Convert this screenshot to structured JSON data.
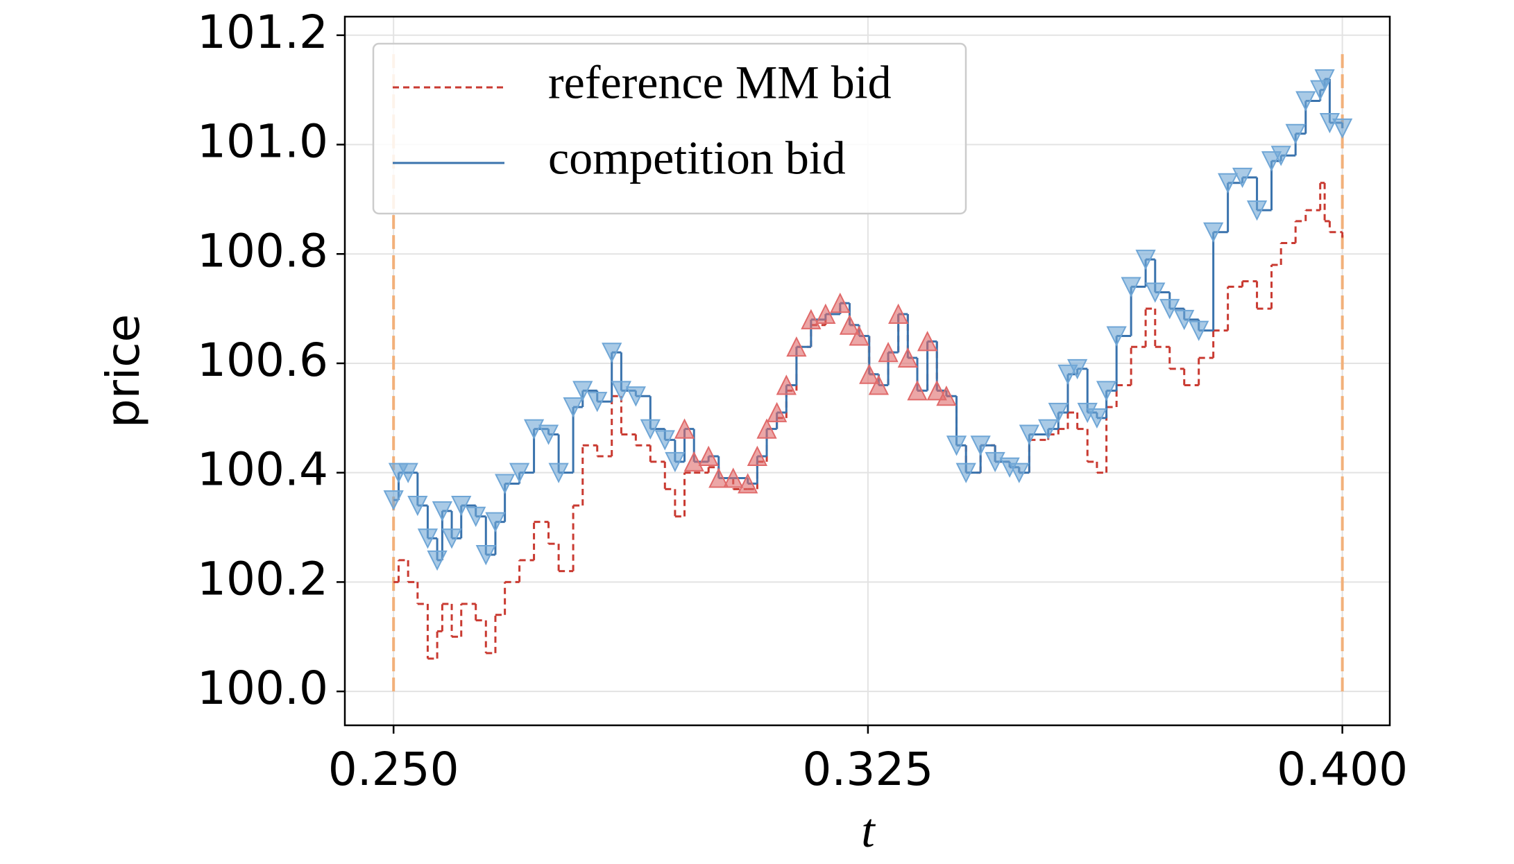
{
  "chart_data": {
    "type": "step",
    "x_label": "t",
    "y_label": "price",
    "xlim": [
      0.2423,
      0.4075
    ],
    "ylim": [
      99.938,
      101.234
    ],
    "xticks": [
      {
        "value": 0.25,
        "label": "0.250"
      },
      {
        "value": 0.325,
        "label": "0.325"
      },
      {
        "value": 0.4,
        "label": "0.400"
      }
    ],
    "yticks": [
      {
        "value": 100.0,
        "label": "100.0"
      },
      {
        "value": 100.2,
        "label": "100.2"
      },
      {
        "value": 100.4,
        "label": "100.4"
      },
      {
        "value": 100.6,
        "label": "100.6"
      },
      {
        "value": 100.8,
        "label": "100.8"
      },
      {
        "value": 101.0,
        "label": "101.0"
      },
      {
        "value": 101.2,
        "label": "101.2"
      }
    ],
    "grid": true,
    "legend": "upper left",
    "x": [
      0.25,
      0.2508,
      0.2523,
      0.2538,
      0.2554,
      0.2569,
      0.2577,
      0.2592,
      0.2607,
      0.263,
      0.2646,
      0.2661,
      0.2676,
      0.2699,
      0.2722,
      0.2745,
      0.2761,
      0.2784,
      0.2799,
      0.2822,
      0.2845,
      0.286,
      0.2883,
      0.2906,
      0.2929,
      0.2945,
      0.296,
      0.2975,
      0.2998,
      0.3014,
      0.3037,
      0.306,
      0.3075,
      0.309,
      0.3106,
      0.3121,
      0.3137,
      0.316,
      0.3183,
      0.3206,
      0.3221,
      0.3236,
      0.3252,
      0.3267,
      0.3282,
      0.3298,
      0.3313,
      0.3328,
      0.3344,
      0.3359,
      0.3374,
      0.339,
      0.3405,
      0.3428,
      0.3451,
      0.3474,
      0.3489,
      0.3505,
      0.3535,
      0.3551,
      0.3566,
      0.3581,
      0.3597,
      0.3612,
      0.3627,
      0.3643,
      0.3666,
      0.3689,
      0.3704,
      0.3727,
      0.375,
      0.3773,
      0.3796,
      0.3819,
      0.3842,
      0.3865,
      0.3888,
      0.3903,
      0.3926,
      0.3942,
      0.3965,
      0.3972,
      0.398,
      0.4
    ],
    "series": [
      {
        "name": "reference MM bid",
        "color": "#c93a31",
        "dash": true,
        "values": [
          100.2,
          100.24,
          100.2,
          100.16,
          100.06,
          100.11,
          100.16,
          100.1,
          100.16,
          100.13,
          100.07,
          100.14,
          100.2,
          100.24,
          100.31,
          100.27,
          100.22,
          100.34,
          100.45,
          100.43,
          100.54,
          100.47,
          100.45,
          100.42,
          100.37,
          100.32,
          100.4,
          100.4,
          100.41,
          100.39,
          100.37,
          100.37,
          100.42,
          100.48,
          100.5,
          100.55,
          100.63,
          100.67,
          100.69,
          100.71,
          100.67,
          100.65,
          100.58,
          100.56,
          100.62,
          100.69,
          100.61,
          100.55,
          100.64,
          100.55,
          100.54,
          100.45,
          100.4,
          100.45,
          100.42,
          100.41,
          100.4,
          100.46,
          100.47,
          100.48,
          100.51,
          100.48,
          100.42,
          100.4,
          100.52,
          100.56,
          100.63,
          100.7,
          100.63,
          100.59,
          100.56,
          100.61,
          100.66,
          100.74,
          100.75,
          100.7,
          100.78,
          100.82,
          100.86,
          100.88,
          100.93,
          100.86,
          100.84,
          100.83
        ]
      },
      {
        "name": "competition bid",
        "color": "#3a73ad",
        "dash": false,
        "marker_colors": {
          "v": "#6fa6d6",
          "^": "#e06a6a"
        },
        "markers": [
          "v",
          "v",
          "v",
          "v",
          "v",
          "v",
          "v",
          "v",
          "v",
          "v",
          "v",
          "v",
          "v",
          "v",
          "v",
          "v",
          "v",
          "v",
          "v",
          "v",
          "v",
          "v",
          "v",
          "v",
          "v",
          "v",
          "^",
          "^",
          "^",
          "^",
          "^",
          "^",
          "^",
          "^",
          "^",
          "^",
          "^",
          "^",
          "^",
          "^",
          "^",
          "^",
          "^",
          "^",
          "^",
          "^",
          "^",
          "^",
          "^",
          "^",
          "^",
          "v",
          "v",
          "v",
          "v",
          "v",
          "v",
          "v",
          "v",
          "v",
          "v",
          "v",
          "v",
          "v",
          "v",
          "v",
          "v",
          "v",
          "v",
          "v",
          "v",
          "v",
          "v",
          "v",
          "v",
          "v",
          "v",
          "v",
          "v",
          "v",
          "v",
          "v",
          "v",
          "v"
        ],
        "values": [
          100.35,
          100.4,
          100.4,
          100.34,
          100.28,
          100.24,
          100.33,
          100.28,
          100.34,
          100.32,
          100.25,
          100.31,
          100.38,
          100.4,
          100.48,
          100.47,
          100.4,
          100.52,
          100.55,
          100.53,
          100.62,
          100.55,
          100.54,
          100.48,
          100.46,
          100.42,
          100.48,
          100.42,
          100.43,
          100.39,
          100.39,
          100.38,
          100.43,
          100.48,
          100.51,
          100.56,
          100.63,
          100.68,
          100.69,
          100.71,
          100.67,
          100.65,
          100.58,
          100.56,
          100.62,
          100.69,
          100.61,
          100.55,
          100.64,
          100.55,
          100.54,
          100.45,
          100.4,
          100.45,
          100.42,
          100.41,
          100.4,
          100.47,
          100.48,
          100.51,
          100.58,
          100.59,
          100.51,
          100.5,
          100.55,
          100.65,
          100.74,
          100.79,
          100.73,
          100.7,
          100.68,
          100.66,
          100.84,
          100.93,
          100.94,
          100.88,
          100.97,
          100.98,
          101.02,
          101.08,
          101.1,
          101.12,
          101.04,
          101.03
        ]
      }
    ],
    "vlines": {
      "x": [
        0.25,
        0.4
      ],
      "ymin": 100.0,
      "ymax": 101.175,
      "color": "#f2b07a"
    }
  }
}
